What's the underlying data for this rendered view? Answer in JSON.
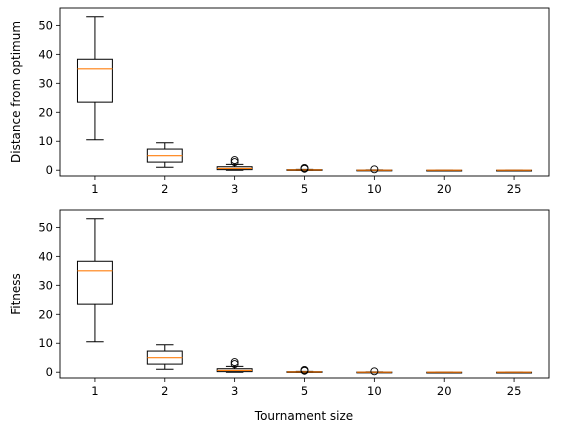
{
  "chart_data": [
    {
      "type": "box",
      "title": "",
      "xlabel": "",
      "ylabel": "Distance from optimum",
      "categories": [
        "1",
        "2",
        "3",
        "5",
        "10",
        "20",
        "25"
      ],
      "ylim": [
        -2,
        56
      ],
      "yticks": [
        0,
        10,
        20,
        30,
        40,
        50
      ],
      "boxes": [
        {
          "whisker_low": 10.5,
          "q1": 23.5,
          "median": 35,
          "q3": 38.3,
          "whisker_high": 53,
          "outliers": []
        },
        {
          "whisker_low": 1,
          "q1": 2.8,
          "median": 5,
          "q3": 7.3,
          "whisker_high": 9.5,
          "outliers": []
        },
        {
          "whisker_low": 0,
          "q1": 0.2,
          "median": 0.6,
          "q3": 1.2,
          "whisker_high": 2,
          "outliers": [
            2.8,
            3.5
          ]
        },
        {
          "whisker_low": 0,
          "q1": 0,
          "median": 0.1,
          "q3": 0.2,
          "whisker_high": 0.3,
          "outliers": [
            0.5,
            0.8
          ]
        },
        {
          "whisker_low": 0,
          "q1": 0,
          "median": 0,
          "q3": 0.05,
          "whisker_high": 0.1,
          "outliers": [
            0.3
          ]
        },
        {
          "whisker_low": 0,
          "q1": 0,
          "median": 0,
          "q3": 0,
          "whisker_high": 0,
          "outliers": []
        },
        {
          "whisker_low": 0,
          "q1": 0,
          "median": 0,
          "q3": 0,
          "whisker_high": 0,
          "outliers": []
        }
      ]
    },
    {
      "type": "box",
      "title": "",
      "xlabel": "Tournament size",
      "ylabel": "Fitness",
      "categories": [
        "1",
        "2",
        "3",
        "5",
        "10",
        "20",
        "25"
      ],
      "ylim": [
        -2,
        56
      ],
      "yticks": [
        0,
        10,
        20,
        30,
        40,
        50
      ],
      "boxes": [
        {
          "whisker_low": 10.5,
          "q1": 23.5,
          "median": 35,
          "q3": 38.3,
          "whisker_high": 53,
          "outliers": []
        },
        {
          "whisker_low": 1,
          "q1": 2.8,
          "median": 5,
          "q3": 7.3,
          "whisker_high": 9.5,
          "outliers": []
        },
        {
          "whisker_low": 0,
          "q1": 0.2,
          "median": 0.6,
          "q3": 1.2,
          "whisker_high": 2,
          "outliers": [
            2.8,
            3.5
          ]
        },
        {
          "whisker_low": 0,
          "q1": 0,
          "median": 0.1,
          "q3": 0.2,
          "whisker_high": 0.3,
          "outliers": [
            0.5,
            0.8
          ]
        },
        {
          "whisker_low": 0,
          "q1": 0,
          "median": 0,
          "q3": 0.05,
          "whisker_high": 0.1,
          "outliers": [
            0.3
          ]
        },
        {
          "whisker_low": 0,
          "q1": 0,
          "median": 0,
          "q3": 0,
          "whisker_high": 0,
          "outliers": []
        },
        {
          "whisker_low": 0,
          "q1": 0,
          "median": 0,
          "q3": 0,
          "whisker_high": 0,
          "outliers": []
        }
      ]
    }
  ],
  "colors": {
    "box": "#000000",
    "median": "#ff7f0e",
    "axes": "#000000"
  }
}
